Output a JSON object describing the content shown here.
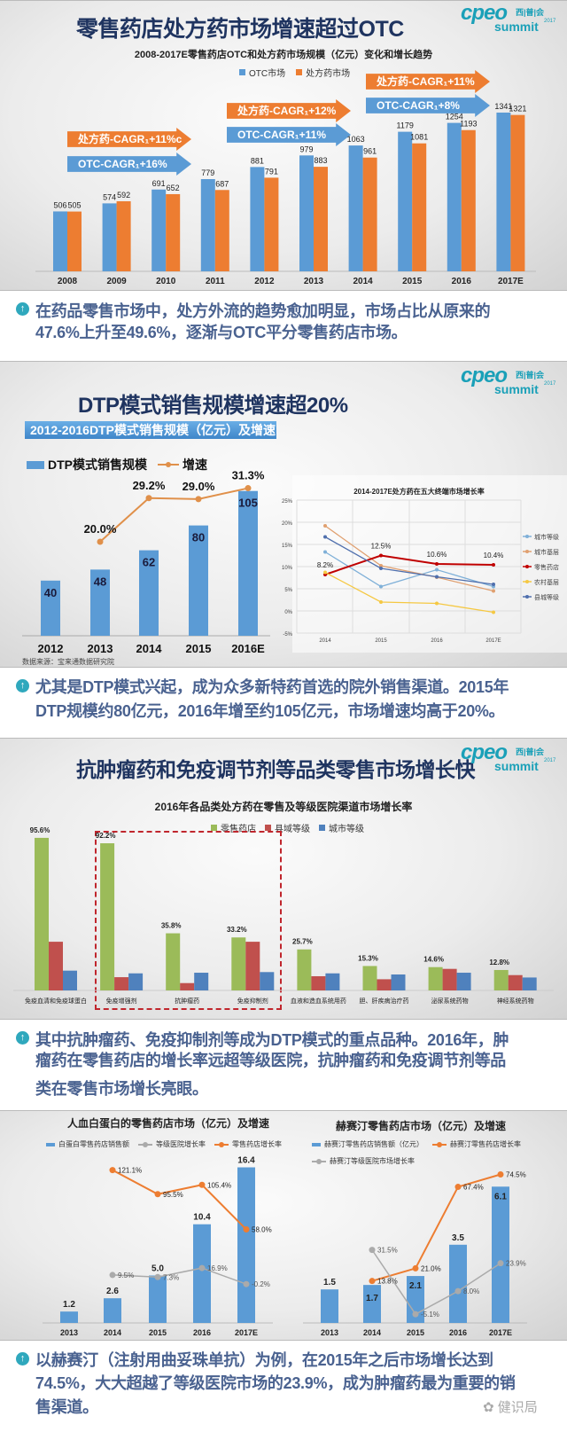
{
  "logo": {
    "mark": "cpeo",
    "cn": "西|普|会",
    "sub": "summit",
    "year": "2017"
  },
  "slide1": {
    "title": "零售药店处方药市场增速超过OTC",
    "chart_title": "2008-2017E零售药店OTC和处方药市场规模（亿元）变化和增长趋势",
    "legend": [
      "OTC市场",
      "处方药市场"
    ],
    "arrows": [
      "处方药-CAGR₁+11%c",
      "OTC-CAGR₁+16%",
      "处方药-CAGR₁+12%",
      "OTC-CAGR₁+11%",
      "处方药-CAGR₁+11%",
      "OTC-CAGR₁+8%"
    ]
  },
  "caption1": {
    "lines": [
      "在药品零售市场中，处方外流的趋势愈加明显，市场占比从原来的",
      "47.6%上升至49.6%，逐渐与OTC平分零售药店市场。"
    ]
  },
  "slide2": {
    "title": "DTP模式销售规模增速超20%",
    "subheader": "2012-2016DTP模式销售规模（亿元）及增速",
    "legend": [
      "DTP模式销售规模",
      "增速"
    ],
    "source": "数据来源：宝来通数据研究院"
  },
  "caption2": {
    "lines": [
      "尤其是DTP模式兴起，成为众多新特药首选的院外销售渠道。2015年",
      "DTP规模约80亿元，2016年增至约105亿元，市场增速均高于20%。"
    ]
  },
  "slide3": {
    "title": "抗肿瘤药和免疫调节剂等品类零售市场增长快",
    "chart_title": "2016年各品类处方药在零售及等级医院渠道市场增长率",
    "legend": [
      "零售药店",
      "县域等级",
      "城市等级"
    ]
  },
  "caption3": {
    "lines": [
      "其中抗肿瘤药、免疫抑制剂等成为DTP模式的重点品种。2016年，肿",
      "瘤药在零售药店的增长率远超等级医院，抗肿瘤药和免疫调节剂等品",
      "类在零售市场增长亮眼。"
    ]
  },
  "slide4": {
    "left_title": "人血白蛋白的零售药店市场（亿元）及增速",
    "left_legend": [
      "白蛋白零售药店销售额",
      "等级医院增长率",
      "零售药店增长率"
    ],
    "right_title": "赫赛汀零售药店市场（亿元）及增速",
    "right_legend": [
      "赫赛汀零售药店销售额（亿元）",
      "赫赛汀零售药店增长率",
      "赫赛汀等级医院市场增长率"
    ]
  },
  "caption4": {
    "lines": [
      "以赫赛汀（注射用曲妥珠单抗）为例，在2015年之后市场增长达到",
      "74.5%，大大超越了等级医院市场的23.9%，成为肿瘤药最为重要的销",
      "售渠道。"
    ]
  },
  "watermark": "健识局",
  "colors": {
    "blue": "#5b9bd5",
    "orange": "#ed7d31",
    "green": "#9bbb59",
    "red": "#c0504d",
    "bar_blue": "#4f81bd",
    "navy": "#1f3460",
    "caption": "#4a6290",
    "teal": "#2fa8bd"
  },
  "chart_data": [
    {
      "type": "bar",
      "title": "2008-2017E零售药店OTC和处方药市场规模（亿元）变化和增长趋势",
      "categories": [
        "2008",
        "2009",
        "2010",
        "2011",
        "2012",
        "2013",
        "2014",
        "2015",
        "2016",
        "2017E"
      ],
      "series": [
        {
          "name": "OTC市场",
          "values": [
            506,
            574,
            691,
            779,
            881,
            979,
            1063,
            1179,
            1254,
            1341
          ]
        },
        {
          "name": "处方药市场",
          "values": [
            505,
            592,
            652,
            687,
            791,
            883,
            961,
            1081,
            1193,
            1321
          ]
        }
      ],
      "ylabel": "亿元",
      "ylim": [
        0,
        1400
      ],
      "legend": "top-center"
    },
    {
      "type": "bar",
      "title": "2012-2016DTP模式销售规模（亿元）及增速",
      "categories": [
        "2012",
        "2013",
        "2014",
        "2015",
        "2016E"
      ],
      "series": [
        {
          "name": "DTP模式销售规模",
          "values": [
            40,
            48,
            62,
            80,
            105
          ]
        },
        {
          "name": "增速",
          "type": "line",
          "values": [
            null,
            20.0,
            29.2,
            29.0,
            31.3
          ],
          "labels": [
            "",
            "20.0%",
            "29.2%",
            "29.0%",
            "31.3%"
          ]
        }
      ],
      "legend": "top-left"
    },
    {
      "type": "line",
      "title": "2014-2017E处方药在五大终端市场增长率",
      "x": [
        "2014",
        "2015",
        "2016",
        "2017E"
      ],
      "yticks": [
        "25%",
        "20%",
        "15%",
        "10%",
        "5%",
        "0%",
        "-5%"
      ],
      "ylim": [
        -5,
        25
      ],
      "series": [
        {
          "name": "城市等级",
          "values": [
            13.3,
            5.5,
            9.3,
            5.5
          ]
        },
        {
          "name": "城市基层",
          "values": [
            19.2,
            10.2,
            7.6,
            4.5
          ]
        },
        {
          "name": "零售药店",
          "values": [
            8.2,
            12.5,
            10.6,
            10.4
          ],
          "labels": [
            "8.2%",
            "12.5%",
            "10.6%",
            "10.4%"
          ]
        },
        {
          "name": "农村基层",
          "values": [
            8.7,
            2.0,
            1.7,
            -0.3
          ]
        },
        {
          "name": "县城等级",
          "values": [
            16.7,
            9.6,
            7.7,
            6.0
          ]
        }
      ],
      "grid": true,
      "legend": "right"
    },
    {
      "type": "bar",
      "title": "2016年各品类处方药在零售及等级医院渠道市场增长率",
      "categories": [
        "免疫血清和免疫球蛋白",
        "免疫增强剂",
        "抗肿瘤药",
        "免疫抑制剂",
        "血液和造血系统用药",
        "胆、肝疾病治疗药",
        "泌尿系统药物",
        "神经系统药物"
      ],
      "series": [
        {
          "name": "零售药店",
          "values": [
            95.6,
            92.2,
            35.8,
            33.2,
            25.7,
            15.3,
            14.6,
            12.8
          ],
          "labels": [
            "95.6%",
            "92.2%",
            "35.8%",
            "33.2%",
            "25.7%",
            "15.3%",
            "14.6%",
            "12.8%"
          ]
        },
        {
          "name": "县域等级",
          "values": [
            30.5,
            8.3,
            4.6,
            30.5,
            8.9,
            7.0,
            13.5,
            9.6
          ]
        },
        {
          "name": "城市等级",
          "values": [
            12.4,
            10.7,
            11.1,
            11.5,
            10.7,
            10.0,
            11.1,
            8.1
          ]
        }
      ],
      "highlight": [
        "免疫增强剂",
        "抗肿瘤药",
        "免疫抑制剂"
      ],
      "legend": "top-center"
    },
    {
      "type": "bar",
      "title": "人血白蛋白的零售药店市场（亿元）及增速",
      "categories": [
        "2013",
        "2014",
        "2015",
        "2016",
        "2017E"
      ],
      "series": [
        {
          "name": "白蛋白零售药店销售额",
          "values": [
            1.2,
            2.6,
            5.0,
            10.4,
            16.4
          ],
          "labels": [
            "1.2",
            "2.6",
            "5.0",
            "10.4",
            "16.4"
          ]
        },
        {
          "name": "等级医院增长率",
          "type": "line",
          "values": [
            null,
            9.5,
            7.3,
            16.9,
            -0.2
          ],
          "labels": [
            "",
            "9.5%",
            "7.3%",
            "16.9%",
            "-0.2%"
          ]
        },
        {
          "name": "零售药店增长率",
          "type": "line",
          "values": [
            null,
            121.1,
            95.5,
            105.4,
            58.0
          ],
          "labels": [
            "",
            "121.1%",
            "95.5%",
            "105.4%",
            "58.0%"
          ]
        }
      ],
      "legend": "top"
    },
    {
      "type": "bar",
      "title": "赫赛汀零售药店市场（亿元）及增速",
      "categories": [
        "2013",
        "2014",
        "2015",
        "2016",
        "2017E"
      ],
      "series": [
        {
          "name": "赫赛汀零售药店销售额（亿元）",
          "values": [
            1.5,
            1.7,
            2.1,
            3.5,
            6.1
          ],
          "labels": [
            "1.5",
            "1.7",
            "2.1",
            "3.5",
            "6.1"
          ]
        },
        {
          "name": "赫赛汀零售药店增长率",
          "type": "line",
          "values": [
            null,
            13.8,
            21.0,
            67.4,
            74.5
          ],
          "labels": [
            "",
            "13.8%",
            "21.0%",
            "67.4%",
            "74.5%"
          ]
        },
        {
          "name": "赫赛汀等级医院市场增长率",
          "type": "line",
          "values": [
            null,
            31.5,
            -5.1,
            8.0,
            23.9
          ],
          "labels": [
            "",
            "31.5%",
            "-5.1%",
            "8.0%",
            "23.9%"
          ]
        }
      ],
      "legend": "top"
    }
  ]
}
